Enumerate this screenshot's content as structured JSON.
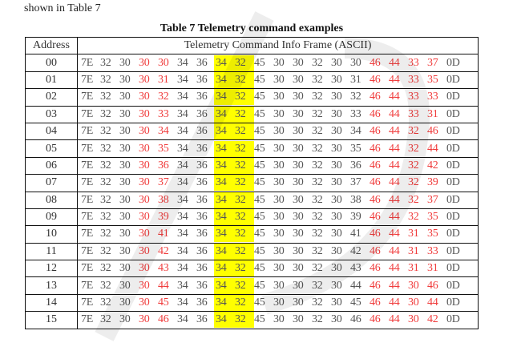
{
  "intro_text": "shown in Table 7",
  "table": {
    "caption": "Table 7 Telemetry command examples",
    "headers": [
      "Address",
      "Telemetry Command Info Frame (ASCII)"
    ],
    "highlight_color": "#ffff00",
    "accent_color": "#f03c3c",
    "rows": [
      {
        "address": "00",
        "bytes": [
          "7E",
          "32",
          "30",
          "30",
          "30",
          "34",
          "36",
          "34",
          "32",
          "45",
          "30",
          "30",
          "32",
          "30",
          "30",
          "46",
          "44",
          "33",
          "37",
          "0D"
        ]
      },
      {
        "address": "01",
        "bytes": [
          "7E",
          "32",
          "30",
          "30",
          "31",
          "34",
          "36",
          "34",
          "32",
          "45",
          "30",
          "30",
          "32",
          "30",
          "31",
          "46",
          "44",
          "33",
          "35",
          "0D"
        ]
      },
      {
        "address": "02",
        "bytes": [
          "7E",
          "32",
          "30",
          "30",
          "32",
          "34",
          "36",
          "34",
          "32",
          "45",
          "30",
          "30",
          "32",
          "30",
          "32",
          "46",
          "44",
          "33",
          "33",
          "0D"
        ]
      },
      {
        "address": "03",
        "bytes": [
          "7E",
          "32",
          "30",
          "30",
          "33",
          "34",
          "36",
          "34",
          "32",
          "45",
          "30",
          "30",
          "32",
          "30",
          "33",
          "46",
          "44",
          "33",
          "31",
          "0D"
        ]
      },
      {
        "address": "04",
        "bytes": [
          "7E",
          "32",
          "30",
          "30",
          "34",
          "34",
          "36",
          "34",
          "32",
          "45",
          "30",
          "30",
          "32",
          "30",
          "34",
          "46",
          "44",
          "32",
          "46",
          "0D"
        ]
      },
      {
        "address": "05",
        "bytes": [
          "7E",
          "32",
          "30",
          "30",
          "35",
          "34",
          "36",
          "34",
          "32",
          "45",
          "30",
          "30",
          "32",
          "30",
          "35",
          "46",
          "44",
          "32",
          "44",
          "0D"
        ]
      },
      {
        "address": "06",
        "bytes": [
          "7E",
          "32",
          "30",
          "30",
          "36",
          "34",
          "36",
          "34",
          "32",
          "45",
          "30",
          "30",
          "32",
          "30",
          "36",
          "46",
          "44",
          "32",
          "42",
          "0D"
        ]
      },
      {
        "address": "07",
        "bytes": [
          "7E",
          "32",
          "30",
          "30",
          "37",
          "34",
          "36",
          "34",
          "32",
          "45",
          "30",
          "30",
          "32",
          "30",
          "37",
          "46",
          "44",
          "32",
          "39",
          "0D"
        ]
      },
      {
        "address": "08",
        "bytes": [
          "7E",
          "32",
          "30",
          "30",
          "38",
          "34",
          "36",
          "34",
          "32",
          "45",
          "30",
          "30",
          "32",
          "30",
          "38",
          "46",
          "44",
          "32",
          "37",
          "0D"
        ]
      },
      {
        "address": "09",
        "bytes": [
          "7E",
          "32",
          "30",
          "30",
          "39",
          "34",
          "36",
          "34",
          "32",
          "45",
          "30",
          "30",
          "32",
          "30",
          "39",
          "46",
          "44",
          "32",
          "35",
          "0D"
        ]
      },
      {
        "address": "10",
        "bytes": [
          "7E",
          "32",
          "30",
          "30",
          "41",
          "34",
          "36",
          "34",
          "32",
          "45",
          "30",
          "30",
          "32",
          "30",
          "41",
          "46",
          "44",
          "31",
          "35",
          "0D"
        ]
      },
      {
        "address": "11",
        "bytes": [
          "7E",
          "32",
          "30",
          "30",
          "42",
          "34",
          "36",
          "34",
          "32",
          "45",
          "30",
          "30",
          "32",
          "30",
          "42",
          "46",
          "44",
          "31",
          "33",
          "0D"
        ]
      },
      {
        "address": "12",
        "bytes": [
          "7E",
          "32",
          "30",
          "30",
          "43",
          "34",
          "36",
          "34",
          "32",
          "45",
          "30",
          "30",
          "32",
          "30",
          "43",
          "46",
          "44",
          "31",
          "31",
          "0D"
        ]
      },
      {
        "address": "13",
        "bytes": [
          "7E",
          "32",
          "30",
          "30",
          "44",
          "34",
          "36",
          "34",
          "32",
          "45",
          "30",
          "30",
          "32",
          "30",
          "44",
          "46",
          "44",
          "30",
          "46",
          "0D"
        ]
      },
      {
        "address": "14",
        "bytes": [
          "7E",
          "32",
          "30",
          "30",
          "45",
          "34",
          "36",
          "34",
          "32",
          "45",
          "30",
          "30",
          "32",
          "30",
          "45",
          "46",
          "44",
          "30",
          "44",
          "0D"
        ]
      },
      {
        "address": "15",
        "bytes": [
          "7E",
          "32",
          "30",
          "30",
          "46",
          "34",
          "36",
          "34",
          "32",
          "45",
          "30",
          "30",
          "32",
          "30",
          "46",
          "46",
          "44",
          "30",
          "42",
          "0D"
        ]
      }
    ]
  }
}
